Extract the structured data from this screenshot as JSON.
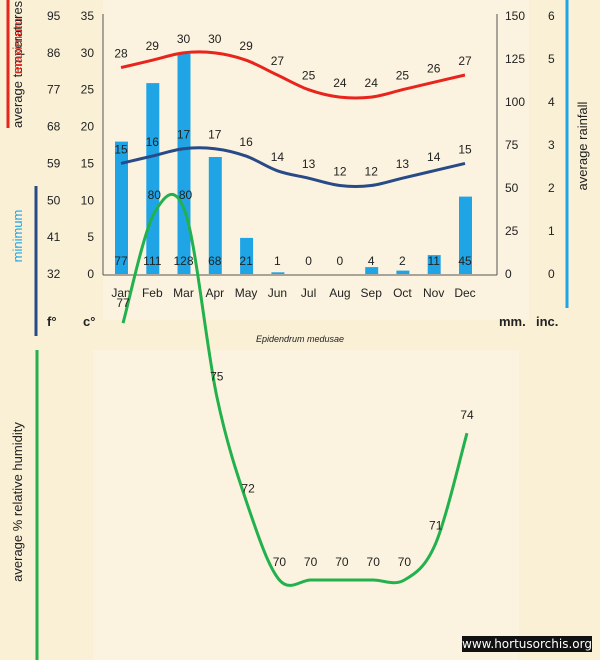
{
  "colors": {
    "max_line": "#e8241c",
    "min_line": "#284a86",
    "rain_bar": "#1fa5e6",
    "humidity_line": "#22b14c",
    "axis_rain": "#1fa5e6",
    "background": "#f9f0d6",
    "panel": "#fbf3df"
  },
  "chart_data": [
    {
      "type": "bar+line",
      "title": "Epidendrum medusae",
      "categories": [
        "Jan",
        "Feb",
        "Mar",
        "Apr",
        "May",
        "Jun",
        "Jul",
        "Aug",
        "Sep",
        "Oct",
        "Nov",
        "Dec"
      ],
      "series": [
        {
          "name": "maximum",
          "kind": "line",
          "axis": "temperature",
          "values": [
            28,
            29,
            30,
            30,
            29,
            27,
            25,
            24,
            24,
            25,
            26,
            27
          ]
        },
        {
          "name": "minimum",
          "kind": "line",
          "axis": "temperature",
          "values": [
            15,
            16,
            17,
            17,
            16,
            14,
            13,
            12,
            12,
            13,
            14,
            15
          ]
        },
        {
          "name": "average rainfall",
          "kind": "bar",
          "axis": "rainfall",
          "values": [
            77,
            111,
            128,
            68,
            21,
            1,
            0,
            0,
            4,
            2,
            11,
            45
          ]
        }
      ],
      "temp_axis": {
        "celsius_ticks": [
          "35",
          "30",
          "25",
          "20",
          "15",
          "10",
          "5",
          "0"
        ],
        "fahrenheit_ticks": [
          "95",
          "86",
          "77",
          "68",
          "59",
          "50",
          "41",
          "32"
        ],
        "range_c": [
          0,
          35
        ],
        "unit_c": "c°",
        "unit_f": "f°"
      },
      "rain_axis": {
        "mm_ticks": [
          "150",
          "125",
          "100",
          "75",
          "50",
          "25",
          "0"
        ],
        "inch_ticks": [
          "6",
          "5",
          "4",
          "3",
          "2",
          "1",
          "0"
        ],
        "range_mm": [
          0,
          150
        ],
        "unit_mm": "mm.",
        "unit_inch": "inc."
      },
      "label_max_word": "maximum",
      "label_avg_temp": "average  temperatures",
      "label_min_word": "minimum",
      "label_rain": "average rainfall"
    },
    {
      "type": "line",
      "categories": [
        "Jan",
        "Feb",
        "Mar",
        "Apr",
        "May",
        "Jun",
        "Jul",
        "Aug",
        "Sep",
        "Oct",
        "Nov",
        "Dec"
      ],
      "series": [
        {
          "name": "average % relative humidity",
          "values": [
            77,
            80,
            80,
            75,
            72,
            70,
            70,
            70,
            70,
            70,
            71,
            74
          ]
        }
      ],
      "ylabel": "average %  relative humidity"
    }
  ],
  "watermark": "www.hortusorchis.org"
}
